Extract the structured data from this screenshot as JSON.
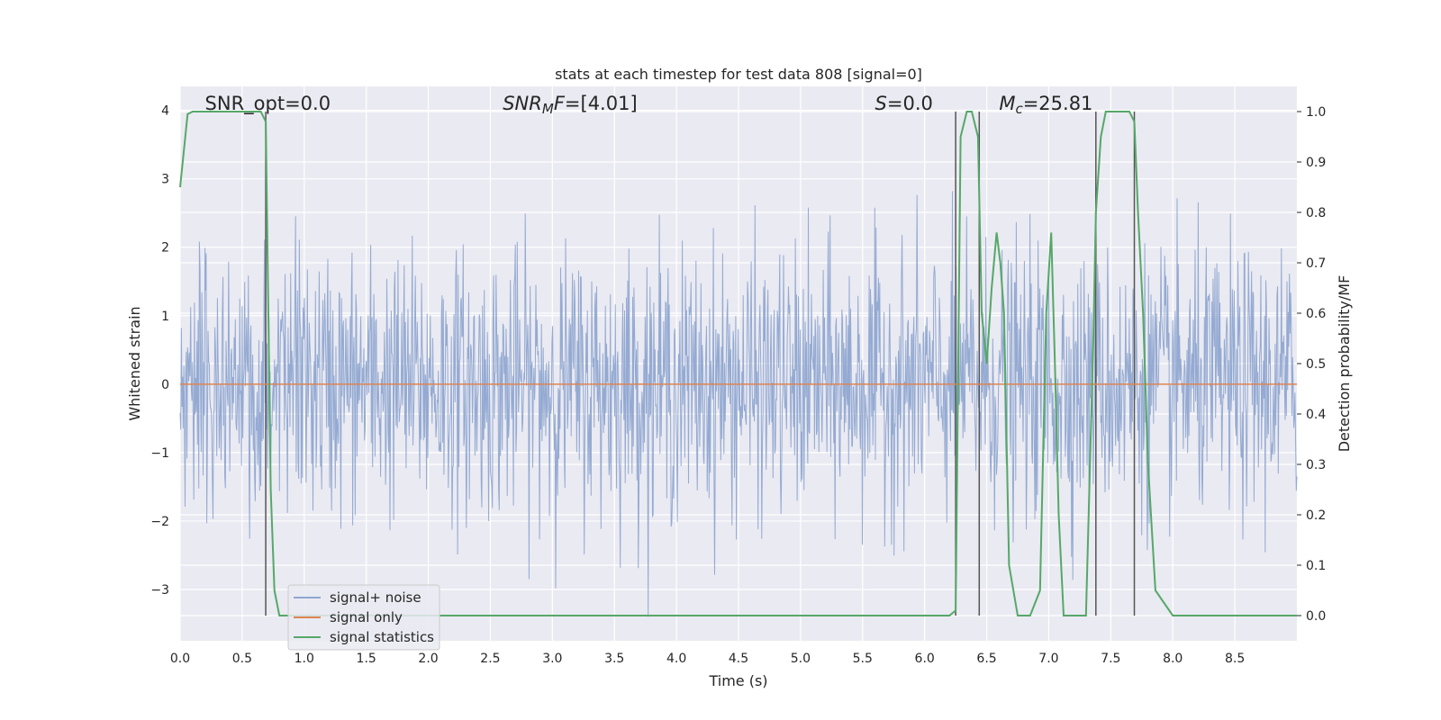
{
  "chart_data": {
    "type": "line",
    "title": "stats at each timestep for test data 808 [signal=0]",
    "xlabel": "Time (s)",
    "ylabel": "Whitened strain",
    "y2label": "Detection probability/MF",
    "xlim": [
      0,
      9
    ],
    "ylim": [
      -3.75,
      4.35
    ],
    "y2lim": [
      -0.05,
      1.05
    ],
    "x_ticks": [
      0.0,
      0.5,
      1.0,
      1.5,
      2.0,
      2.5,
      3.0,
      3.5,
      4.0,
      4.5,
      5.0,
      5.5,
      6.0,
      6.5,
      7.0,
      7.5,
      8.0,
      8.5
    ],
    "x_tick_labels": [
      "0.0",
      "0.5",
      "1.0",
      "1.5",
      "2.0",
      "2.5",
      "3.0",
      "3.5",
      "4.0",
      "4.5",
      "5.0",
      "5.5",
      "6.0",
      "6.5",
      "7.0",
      "7.5",
      "8.0",
      "8.5"
    ],
    "y_ticks": [
      -3,
      -2,
      -1,
      0,
      1,
      2,
      3,
      4
    ],
    "y_tick_labels": [
      "−3",
      "−2",
      "−1",
      "0",
      "1",
      "2",
      "3",
      "4"
    ],
    "y2_ticks": [
      0.0,
      0.1,
      0.2,
      0.3,
      0.4,
      0.5,
      0.6,
      0.7,
      0.8,
      0.9,
      1.0
    ],
    "y2_tick_labels": [
      "0.0",
      "0.1",
      "0.2",
      "0.3",
      "0.4",
      "0.5",
      "0.6",
      "0.7",
      "0.8",
      "0.9",
      "1.0"
    ],
    "grid": true,
    "legend_position": "lower-left",
    "annotations": [
      {
        "text": "SNR_opt=0.0",
        "x": 0.2,
        "y": 4.1
      },
      {
        "text": "SNR_MF=[4.01]",
        "x": 2.6,
        "y": 4.1
      },
      {
        "text": "S=0.0",
        "x": 5.6,
        "y": 4.1
      },
      {
        "text": "M_c=25.81",
        "x": 6.6,
        "y": 4.1
      }
    ],
    "vertical_lines": [
      0.69,
      6.25,
      6.44,
      7.38,
      7.69
    ],
    "series": [
      {
        "name": "signal+ noise",
        "color": "#8fa6d0",
        "axis": "left",
        "description": "whitened strain noise trace, roughly Gaussian with amplitude about ±1.5, extremes near +4 and −3.4",
        "samples": 1800,
        "approx_range": [
          -3.4,
          4.0
        ]
      },
      {
        "name": "signal only",
        "color": "#dd8452",
        "axis": "left",
        "x": [
          0,
          9
        ],
        "y": [
          0,
          0
        ]
      },
      {
        "name": "signal statistics",
        "color": "#55a868",
        "axis": "right",
        "x": [
          0.0,
          0.06,
          0.1,
          0.15,
          0.5,
          0.65,
          0.69,
          0.73,
          0.76,
          0.8,
          1.0,
          2.0,
          3.0,
          4.0,
          5.0,
          6.0,
          6.2,
          6.25,
          6.29,
          6.34,
          6.38,
          6.43,
          6.46,
          6.5,
          6.54,
          6.58,
          6.61,
          6.64,
          6.68,
          6.75,
          6.85,
          6.93,
          6.98,
          7.02,
          7.05,
          7.08,
          7.12,
          7.2,
          7.3,
          7.36,
          7.38,
          7.42,
          7.46,
          7.6,
          7.65,
          7.69,
          7.72,
          7.76,
          7.8,
          7.86,
          8.0,
          9.0
        ],
        "y": [
          0.85,
          0.995,
          1.0,
          1.0,
          1.0,
          1.0,
          0.98,
          0.25,
          0.05,
          0.0,
          0.0,
          0.0,
          0.0,
          0.0,
          0.0,
          0.0,
          0.0,
          0.01,
          0.95,
          1.0,
          1.0,
          0.95,
          0.6,
          0.5,
          0.65,
          0.76,
          0.7,
          0.6,
          0.1,
          0.0,
          0.0,
          0.05,
          0.6,
          0.76,
          0.5,
          0.2,
          0.0,
          0.0,
          0.0,
          0.55,
          0.8,
          0.95,
          1.0,
          1.0,
          1.0,
          0.98,
          0.8,
          0.6,
          0.3,
          0.05,
          0.0,
          0.0
        ]
      }
    ]
  }
}
